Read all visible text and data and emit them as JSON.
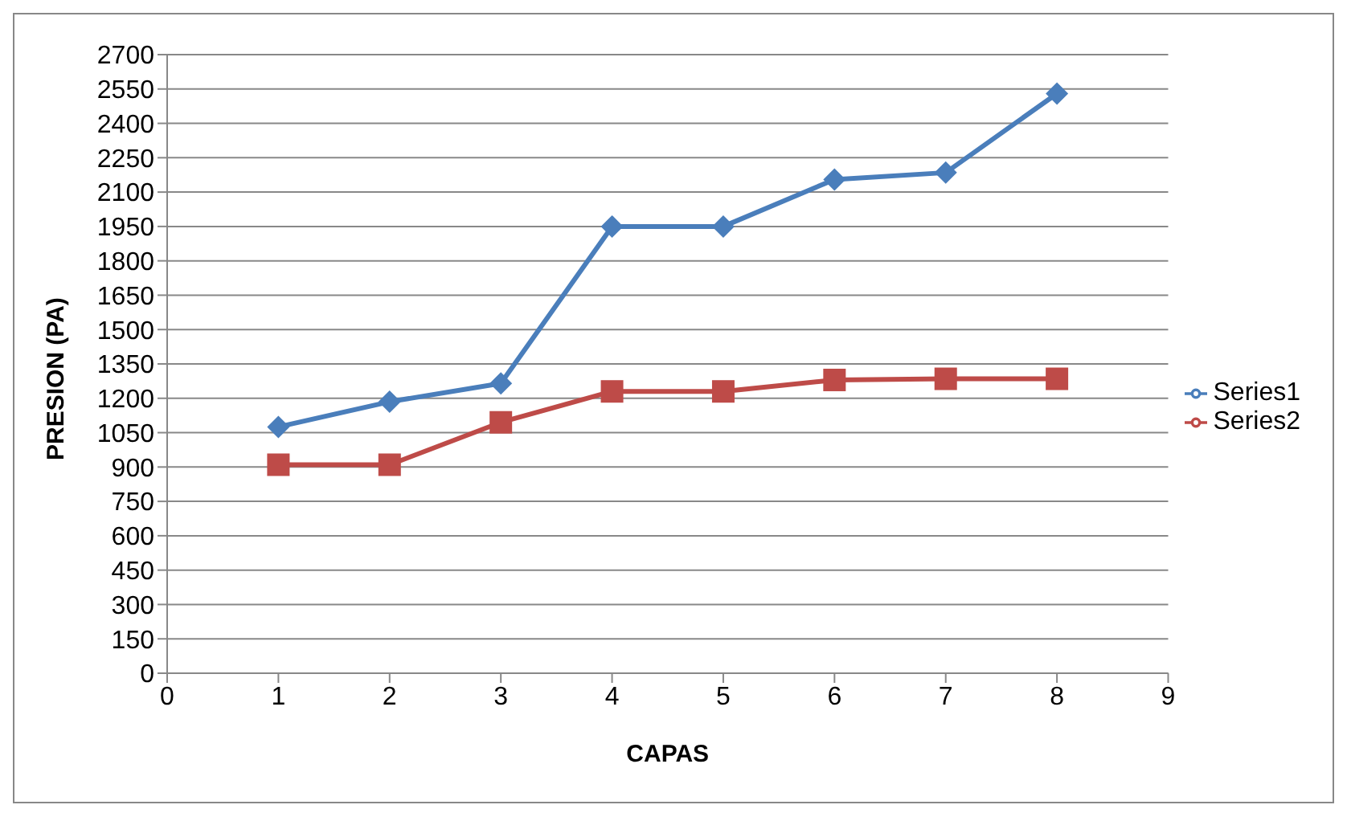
{
  "chart_data": {
    "type": "line",
    "xlabel": "CAPAS",
    "ylabel": "PRESION (PA)",
    "x": [
      1,
      2,
      3,
      4,
      5,
      6,
      7,
      8
    ],
    "series": [
      {
        "name": "Series1",
        "color": "#4a7ebb",
        "marker": "diamond",
        "values": [
          1075,
          1185,
          1265,
          1950,
          1950,
          2155,
          2185,
          2530
        ]
      },
      {
        "name": "Series2",
        "color": "#be4b48",
        "marker": "square",
        "values": [
          910,
          910,
          1095,
          1230,
          1230,
          1280,
          1285,
          1285
        ]
      }
    ],
    "xlim": [
      0,
      9
    ],
    "xticks": [
      0,
      1,
      2,
      3,
      4,
      5,
      6,
      7,
      8,
      9
    ],
    "ylim": [
      0,
      2700
    ],
    "yticks": [
      0,
      150,
      300,
      450,
      600,
      750,
      900,
      1050,
      1200,
      1350,
      1500,
      1650,
      1800,
      1950,
      2100,
      2250,
      2400,
      2550,
      2700
    ],
    "grid": "y",
    "legend": "right"
  }
}
